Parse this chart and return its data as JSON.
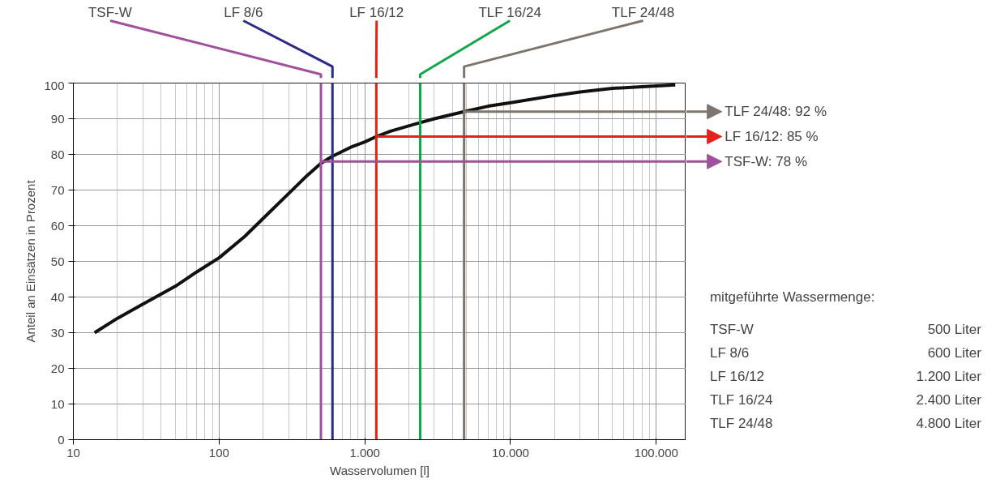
{
  "chart_data": {
    "type": "line",
    "xlabel": "Wasservolumen [l]",
    "ylabel": "Anteil an Einsätzen in Prozent",
    "log": "x",
    "grid": true,
    "line_style": "solid",
    "marker": "none",
    "xlim": [
      10,
      160000
    ],
    "ylim": [
      0,
      100
    ],
    "xticks": [
      10,
      100,
      {
        "value": 1000,
        "label": "1.000"
      },
      {
        "value": 10000,
        "label": "10.000"
      },
      {
        "value": 100000,
        "label": "100.000"
      }
    ],
    "yticks": [
      0,
      10,
      20,
      30,
      40,
      50,
      60,
      70,
      80,
      90,
      100
    ],
    "series": [
      {
        "color": "#111111",
        "x": [
          14,
          20,
          30,
          50,
          70,
          100,
          150,
          200,
          300,
          400,
          500,
          600,
          800,
          1000,
          1200,
          1500,
          2000,
          3000,
          4800,
          7000,
          10000,
          20000,
          30000,
          50000,
          80000,
          135000
        ],
        "values": [
          30,
          34,
          38,
          43,
          47,
          51,
          57,
          62,
          69,
          74,
          77.5,
          79.5,
          82,
          83.5,
          85,
          86.5,
          88,
          90,
          92,
          93.5,
          94.5,
          96.5,
          97.5,
          98.5,
          99,
          99.5
        ]
      }
    ],
    "ref_lines": [
      {
        "axis": "x",
        "value": 500,
        "label": "TSF-W",
        "color": "#a0519b"
      },
      {
        "axis": "x",
        "value": 600,
        "label": "LF 8/6",
        "color": "#2b2a86"
      },
      {
        "axis": "x",
        "value": 1200,
        "label": "LF 16/12",
        "color": "#e3221c"
      },
      {
        "axis": "x",
        "value": 2400,
        "label": "TLF 16/24",
        "color": "#12a54a"
      },
      {
        "axis": "x",
        "value": 4800,
        "label": "TLF 24/48",
        "color": "#7d746e"
      },
      {
        "axis": "y",
        "value": 92,
        "label": "TLF 24/48: 92 %",
        "color": "#7d746e"
      },
      {
        "axis": "y",
        "value": 85,
        "label": "LF 16/12:   85 %",
        "color": "#e3221c"
      },
      {
        "axis": "y",
        "value": 78,
        "label": "TSF-W:       78 %",
        "color": "#a0519b"
      }
    ],
    "annotations": [
      "mitgeführte Wassermenge:",
      "TSF-W",
      "500 Liter",
      "LF 8/6",
      "600 Liter",
      "LF 16/12",
      "1.200 Liter",
      "TLF 16/24",
      "2.400 Liter",
      "TLF 24/48",
      "4.800 Liter"
    ]
  }
}
